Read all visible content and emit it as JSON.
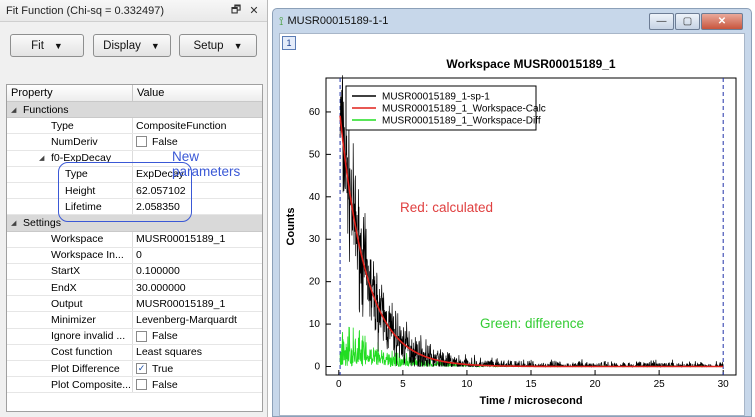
{
  "dock": {
    "title": "Fit Function (Chi-sq = 0.332497)",
    "float_icon": "🗗",
    "close_icon": "✕",
    "buttons": {
      "fit": "Fit",
      "display": "Display",
      "setup": "Setup"
    },
    "columns": {
      "property": "Property",
      "value": "Value"
    },
    "rows": [
      {
        "type": "group",
        "label": "Functions"
      },
      {
        "indent": 1,
        "label": "Type",
        "value": "CompositeFunction"
      },
      {
        "indent": 1,
        "label": "NumDeriv",
        "value": "False",
        "check": ""
      },
      {
        "type": "sub",
        "indent": 1,
        "label": "f0-ExpDecay"
      },
      {
        "indent": 2,
        "label": "Type",
        "value": "ExpDecay"
      },
      {
        "indent": 2,
        "label": "Height",
        "value": "62.057102"
      },
      {
        "indent": 2,
        "label": "Lifetime",
        "value": "2.058350"
      },
      {
        "type": "group",
        "label": "Settings"
      },
      {
        "indent": 1,
        "label": "Workspace",
        "value": "MUSR00015189_1"
      },
      {
        "indent": 1,
        "label": "Workspace In...",
        "value": "0"
      },
      {
        "indent": 1,
        "label": "StartX",
        "value": "0.100000"
      },
      {
        "indent": 1,
        "label": "EndX",
        "value": "30.000000"
      },
      {
        "indent": 1,
        "label": "Output",
        "value": "MUSR00015189_1"
      },
      {
        "indent": 1,
        "label": "Minimizer",
        "value": "Levenberg-Marquardt"
      },
      {
        "indent": 1,
        "label": "Ignore invalid ...",
        "value": "False",
        "check": ""
      },
      {
        "indent": 1,
        "label": "Cost function",
        "value": "Least squares"
      },
      {
        "indent": 1,
        "label": "Plot Difference",
        "value": "True",
        "check": "✓"
      },
      {
        "indent": 1,
        "label": "Plot Composite...",
        "value": "False",
        "check": ""
      }
    ],
    "annotation": "New parameters"
  },
  "plot_window": {
    "title": "MUSR00015189-1-1",
    "badge": "1",
    "buttons": {
      "min": "—",
      "max": "▢",
      "close": "✕"
    }
  },
  "annotations": {
    "red": "Red: calculated",
    "green": "Green: difference"
  },
  "colors": {
    "data": "#000000",
    "calc": "#e0201a",
    "diff": "#22dd22",
    "annot_red": "#e04040",
    "annot_green": "#33cc33",
    "annot_blue": "#3a58d6"
  },
  "chart_data": {
    "type": "line",
    "title": "Workspace MUSR00015189_1",
    "xlabel": "Time / microsecond",
    "ylabel": "Counts",
    "xlim": [
      -1,
      31
    ],
    "ylim": [
      -2,
      68
    ],
    "xticks": [
      0,
      5,
      10,
      15,
      20,
      25,
      30
    ],
    "yticks": [
      0,
      10,
      20,
      30,
      40,
      50,
      60
    ],
    "legend_position": "top-left",
    "series": [
      {
        "name": "MUSR00015189_1-sp-1",
        "color": "#000000",
        "model": "exp_decay_noisy",
        "height": 62.057102,
        "lifetime": 2.05835,
        "x_range": [
          0.1,
          30
        ]
      },
      {
        "name": "MUSR00015189_1_Workspace-Calc",
        "color": "#e0201a",
        "model": "exp_decay",
        "height": 62.057102,
        "lifetime": 2.05835,
        "x_range": [
          0.1,
          30
        ]
      },
      {
        "name": "MUSR00015189_1_Workspace-Diff",
        "color": "#22dd22",
        "model": "difference",
        "x_range": [
          0.1,
          30
        ]
      }
    ],
    "range_markers": [
      0.1,
      30
    ]
  }
}
